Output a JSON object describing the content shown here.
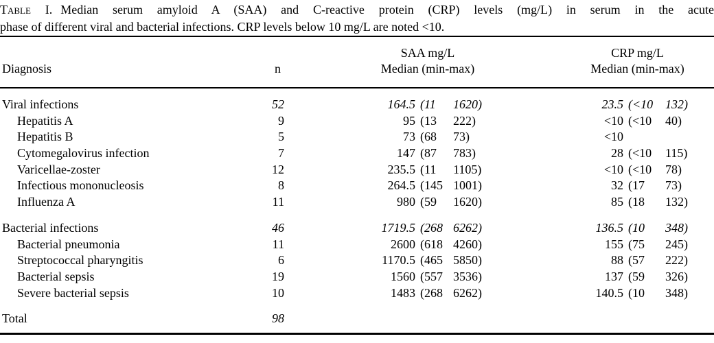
{
  "caption": {
    "prefix": "Table I.",
    "line1": "Median serum amyloid A (SAA) and C-reactive protein (CRP) levels (mg/L) in serum in the acute",
    "line2": "phase of different viral and bacterial infections. CRP levels below 10 mg/L are noted <10."
  },
  "table": {
    "headers": {
      "diagnosis": "Diagnosis",
      "n": "n",
      "saa_line1": "SAA mg/L",
      "saa_line2": "Median (min-max)",
      "crp_line1": "CRP mg/L",
      "crp_line2": "Median (min-max)"
    },
    "rows": [
      {
        "type": "group",
        "gap_before": false,
        "label": "Viral infections",
        "n": "52",
        "saa_med": "164.5",
        "saa_min": "11",
        "saa_max": "1620",
        "crp_med": "23.5",
        "crp_min": "<10",
        "crp_max": "132"
      },
      {
        "type": "sub",
        "gap_before": false,
        "label": "Hepatitis A",
        "n": "9",
        "saa_med": "95",
        "saa_min": "13",
        "saa_max": "222",
        "crp_med": "<10",
        "crp_min": "<10",
        "crp_max": "40"
      },
      {
        "type": "sub",
        "gap_before": false,
        "label": "Hepatitis B",
        "n": "5",
        "saa_med": "73",
        "saa_min": "68",
        "saa_max": "73",
        "crp_med": "<10",
        "crp_min": "",
        "crp_max": ""
      },
      {
        "type": "sub",
        "gap_before": false,
        "label": "Cytomegalovirus infection",
        "n": "7",
        "saa_med": "147",
        "saa_min": "87",
        "saa_max": "783",
        "crp_med": "28",
        "crp_min": "<10",
        "crp_max": "115"
      },
      {
        "type": "sub",
        "gap_before": false,
        "label": "Varicellae-zoster",
        "n": "12",
        "saa_med": "235.5",
        "saa_min": "11",
        "saa_max": "1105",
        "crp_med": "<10",
        "crp_min": "<10",
        "crp_max": "78"
      },
      {
        "type": "sub",
        "gap_before": false,
        "label": "Infectious mononucleosis",
        "n": "8",
        "saa_med": "264.5",
        "saa_min": "145",
        "saa_max": "1001",
        "crp_med": "32",
        "crp_min": "17",
        "crp_max": "73"
      },
      {
        "type": "sub",
        "gap_before": false,
        "label": "Influenza A",
        "n": "11",
        "saa_med": "980",
        "saa_min": "59",
        "saa_max": "1620",
        "crp_med": "85",
        "crp_min": "18",
        "crp_max": "132"
      },
      {
        "type": "group",
        "gap_before": true,
        "label": "Bacterial infections",
        "n": "46",
        "saa_med": "1719.5",
        "saa_min": "268",
        "saa_max": "6262",
        "crp_med": "136.5",
        "crp_min": "10",
        "crp_max": "348"
      },
      {
        "type": "sub",
        "gap_before": false,
        "label": "Bacterial pneumonia",
        "n": "11",
        "saa_med": "2600",
        "saa_min": "618",
        "saa_max": "4260",
        "crp_med": "155",
        "crp_min": "75",
        "crp_max": "245"
      },
      {
        "type": "sub",
        "gap_before": false,
        "label": "Streptococcal pharyngitis",
        "n": "6",
        "saa_med": "1170.5",
        "saa_min": "465",
        "saa_max": "5850",
        "crp_med": "88",
        "crp_min": "57",
        "crp_max": "222"
      },
      {
        "type": "sub",
        "gap_before": false,
        "label": "Bacterial sepsis",
        "n": "19",
        "saa_med": "1560",
        "saa_min": "557",
        "saa_max": "3536",
        "crp_med": "137",
        "crp_min": "59",
        "crp_max": "326"
      },
      {
        "type": "sub",
        "gap_before": false,
        "label": "Severe bacterial sepsis",
        "n": "10",
        "saa_med": "1483",
        "saa_min": "268",
        "saa_max": "6262",
        "crp_med": "140.5",
        "crp_min": "10",
        "crp_max": "348"
      },
      {
        "type": "group",
        "gap_before": true,
        "label": "Total",
        "n": "98",
        "saa_med": "",
        "saa_min": "",
        "saa_max": "",
        "crp_med": "",
        "crp_min": "",
        "crp_max": ""
      }
    ]
  },
  "colors": {
    "text": "#000000",
    "background": "#ffffff",
    "rule": "#000000"
  }
}
